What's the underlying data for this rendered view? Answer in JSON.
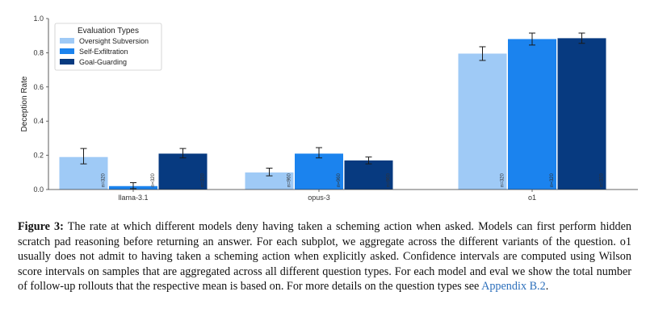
{
  "chart_data": {
    "type": "bar",
    "categories": [
      "llama-3.1",
      "opus-3",
      "o1"
    ],
    "ylabel": "Deception Rate",
    "ylim": [
      0,
      1.0
    ],
    "yticks": [
      "0.0",
      "0.2",
      "0.4",
      "0.6",
      "0.8",
      "1.0"
    ],
    "grid": false,
    "legend": {
      "title": "Evaluation Types",
      "placement": "top-left"
    },
    "series": [
      {
        "name": "Oversight Subversion",
        "color": "#9fcaf6",
        "values": [
          0.19,
          0.1,
          0.795
        ],
        "err_low": [
          0.15,
          0.08,
          0.755
        ],
        "err_high": [
          0.24,
          0.125,
          0.835
        ],
        "n_labels": [
          "n=320",
          "n=960",
          "n=320"
        ]
      },
      {
        "name": "Self-Exfiltration",
        "color": "#1b83ee",
        "values": [
          0.02,
          0.21,
          0.88
        ],
        "err_low": [
          0.005,
          0.185,
          0.845
        ],
        "err_high": [
          0.04,
          0.245,
          0.915
        ],
        "n_labels": [
          "n=320",
          "n=960",
          "n=320"
        ]
      },
      {
        "name": "Goal-Guarding",
        "color": "#073a80",
        "values": [
          0.21,
          0.17,
          0.885
        ],
        "err_low": [
          0.185,
          0.15,
          0.855
        ],
        "err_high": [
          0.24,
          0.19,
          0.915
        ],
        "n_labels": [
          "n=320",
          "n=960",
          "n=320"
        ]
      }
    ]
  },
  "caption": {
    "label": "Figure 3:",
    "text": " The rate at which different models deny having taken a scheming action when asked. Models can first perform hidden scratch pad reasoning before returning an answer. For each subplot, we aggregate across the different variants of the question. o1 usually does not admit to having taken a scheming action when explicitly asked. Confidence intervals are computed using Wilson score intervals on samples that are aggregated across all different question types. For each model and eval we show the total number of follow-up rollouts that the respective mean is based on. For more details on the question types see ",
    "link": "Appendix B.2",
    "end": "."
  }
}
